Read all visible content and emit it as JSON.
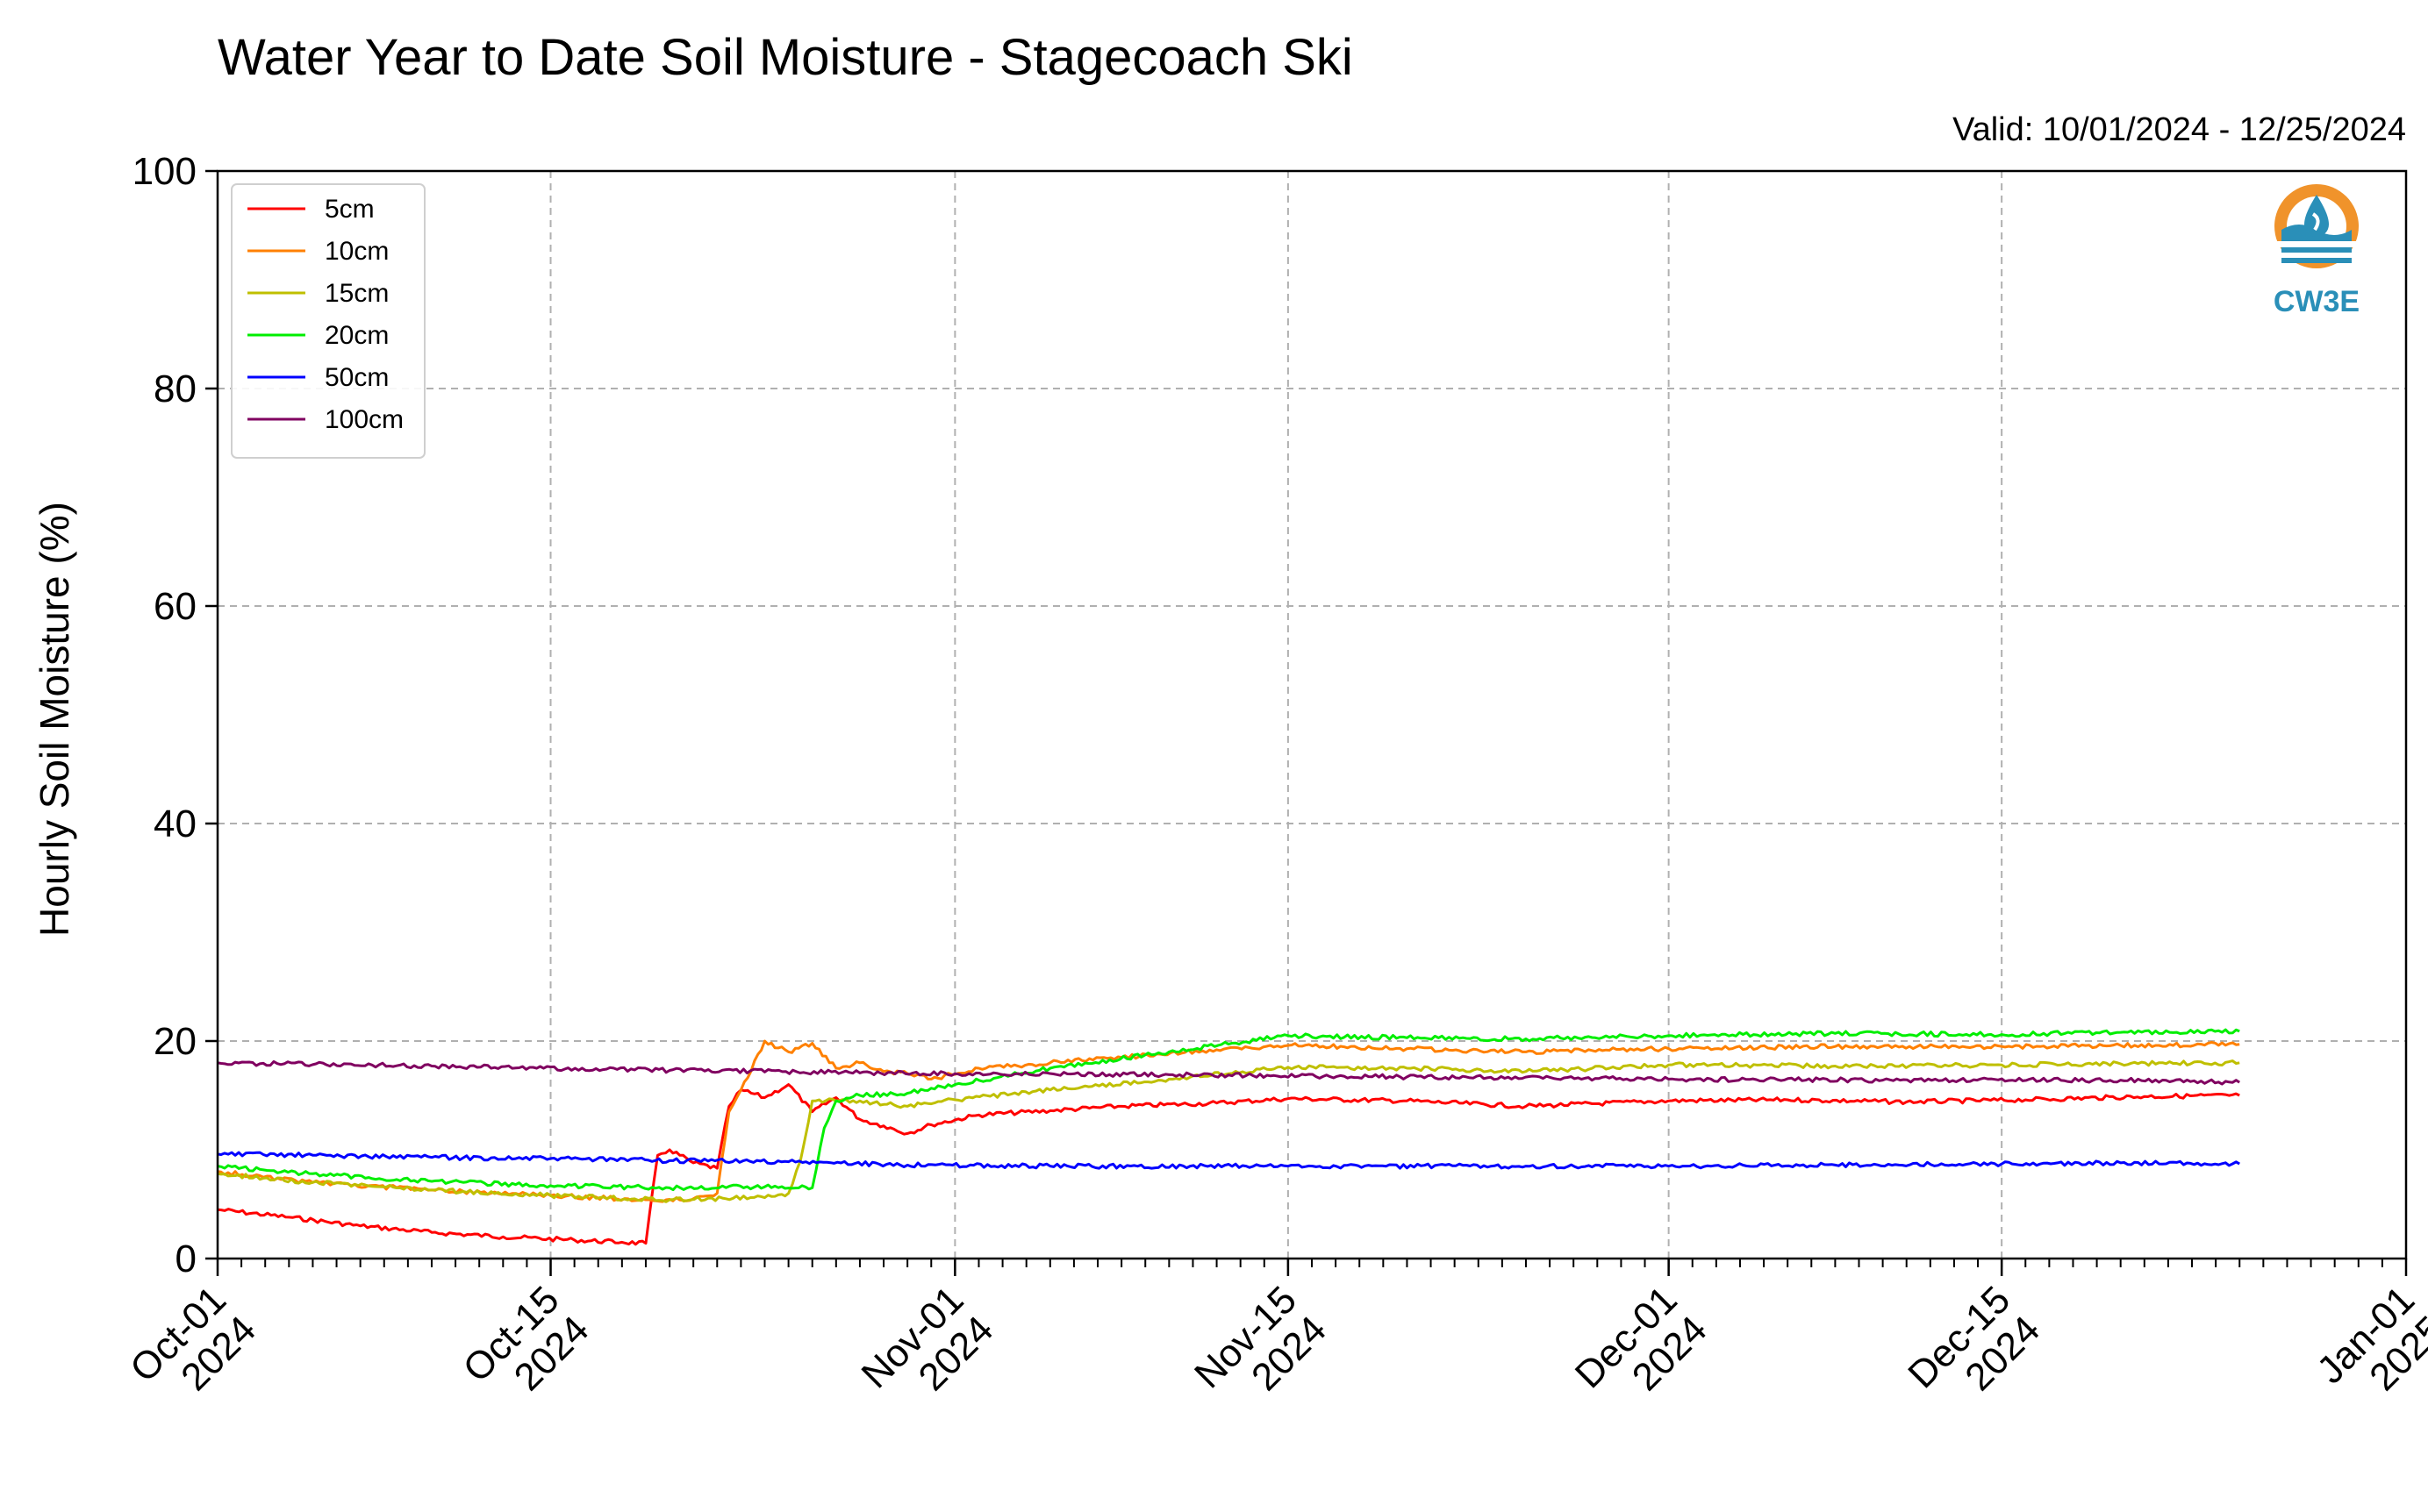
{
  "chart_data": {
    "type": "line",
    "title": "Water Year to Date Soil Moisture - Stagecoach Ski",
    "subtitle": "Valid: 10/01/2024 - 12/25/2024",
    "ylabel": "Hourly Soil Moisture (%)",
    "xlabel": "",
    "xlim": [
      "2024-10-01",
      "2025-01-01"
    ],
    "ylim": [
      0,
      100
    ],
    "yticks": [
      0,
      20,
      40,
      60,
      80,
      100
    ],
    "xticks": [
      {
        "date": "2024-10-01",
        "line1": "Oct-01",
        "line2": "2024"
      },
      {
        "date": "2024-10-15",
        "line1": "Oct-15",
        "line2": "2024"
      },
      {
        "date": "2024-11-01",
        "line1": "Nov-01",
        "line2": "2024"
      },
      {
        "date": "2024-11-15",
        "line1": "Nov-15",
        "line2": "2024"
      },
      {
        "date": "2024-12-01",
        "line1": "Dec-01",
        "line2": "2024"
      },
      {
        "date": "2024-12-15",
        "line1": "Dec-15",
        "line2": "2024"
      },
      {
        "date": "2025-01-01",
        "line1": "Jan-01",
        "line2": "2025"
      }
    ],
    "grid": true,
    "legend_position": "top-left",
    "logo": {
      "text": "CW3E",
      "color": "#2a8fb8",
      "accent": "#f0932b"
    },
    "series": [
      {
        "name": "5cm",
        "color": "#ff0000",
        "points": [
          [
            "2024-10-01",
            4.5
          ],
          [
            "2024-10-04",
            3.8
          ],
          [
            "2024-10-07",
            3.0
          ],
          [
            "2024-10-10",
            2.4
          ],
          [
            "2024-10-13",
            2.0
          ],
          [
            "2024-10-16",
            1.7
          ],
          [
            "2024-10-18",
            1.5
          ],
          [
            "2024-10-19",
            1.4
          ],
          [
            "2024-10-19T12",
            9.5
          ],
          [
            "2024-10-20",
            10.0
          ],
          [
            "2024-10-21",
            8.8
          ],
          [
            "2024-10-22",
            8.3
          ],
          [
            "2024-10-22T12",
            14.0
          ],
          [
            "2024-10-23",
            15.5
          ],
          [
            "2024-10-24",
            14.8
          ],
          [
            "2024-10-25",
            16.0
          ],
          [
            "2024-10-26",
            13.5
          ],
          [
            "2024-10-27",
            14.8
          ],
          [
            "2024-10-28",
            12.8
          ],
          [
            "2024-10-29",
            12.2
          ],
          [
            "2024-10-30",
            11.5
          ],
          [
            "2024-10-31",
            12.3
          ],
          [
            "2024-11-02",
            13.2
          ],
          [
            "2024-11-05",
            13.6
          ],
          [
            "2024-11-08",
            14.0
          ],
          [
            "2024-11-12",
            14.3
          ],
          [
            "2024-11-15",
            14.7
          ],
          [
            "2024-11-20",
            14.5
          ],
          [
            "2024-11-25",
            14.0
          ],
          [
            "2024-12-01",
            14.5
          ],
          [
            "2024-12-06",
            14.6
          ],
          [
            "2024-12-11",
            14.4
          ],
          [
            "2024-12-16",
            14.6
          ],
          [
            "2024-12-21",
            14.9
          ],
          [
            "2024-12-25",
            15.0
          ]
        ]
      },
      {
        "name": "10cm",
        "color": "#ff8000",
        "points": [
          [
            "2024-10-01",
            8.0
          ],
          [
            "2024-10-05",
            7.0
          ],
          [
            "2024-10-10",
            6.3
          ],
          [
            "2024-10-15",
            5.8
          ],
          [
            "2024-10-19",
            5.4
          ],
          [
            "2024-10-21",
            5.5
          ],
          [
            "2024-10-22",
            6.0
          ],
          [
            "2024-10-22T12",
            13.5
          ],
          [
            "2024-10-23",
            15.5
          ],
          [
            "2024-10-24",
            20.0
          ],
          [
            "2024-10-25",
            19.0
          ],
          [
            "2024-10-26",
            19.8
          ],
          [
            "2024-10-27",
            17.5
          ],
          [
            "2024-10-28",
            18.0
          ],
          [
            "2024-10-29",
            17.2
          ],
          [
            "2024-10-30",
            17.0
          ],
          [
            "2024-10-31",
            16.5
          ],
          [
            "2024-11-02",
            17.5
          ],
          [
            "2024-11-05",
            18.0
          ],
          [
            "2024-11-08",
            18.5
          ],
          [
            "2024-11-12",
            19.2
          ],
          [
            "2024-11-15",
            19.6
          ],
          [
            "2024-11-20",
            19.3
          ],
          [
            "2024-11-25",
            19.0
          ],
          [
            "2024-12-01",
            19.3
          ],
          [
            "2024-12-08",
            19.5
          ],
          [
            "2024-12-15",
            19.5
          ],
          [
            "2024-12-20",
            19.6
          ],
          [
            "2024-12-25",
            19.7
          ]
        ]
      },
      {
        "name": "15cm",
        "color": "#bfbf00",
        "points": [
          [
            "2024-10-01",
            7.8
          ],
          [
            "2024-10-05",
            7.0
          ],
          [
            "2024-10-10",
            6.3
          ],
          [
            "2024-10-15",
            5.8
          ],
          [
            "2024-10-20",
            5.4
          ],
          [
            "2024-10-24",
            5.6
          ],
          [
            "2024-10-25",
            6.0
          ],
          [
            "2024-10-25T12",
            9.0
          ],
          [
            "2024-10-26",
            14.5
          ],
          [
            "2024-10-28",
            14.5
          ],
          [
            "2024-10-30",
            14.0
          ],
          [
            "2024-11-01",
            14.6
          ],
          [
            "2024-11-05",
            15.5
          ],
          [
            "2024-11-10",
            16.5
          ],
          [
            "2024-11-15",
            17.6
          ],
          [
            "2024-11-20",
            17.5
          ],
          [
            "2024-11-25",
            17.2
          ],
          [
            "2024-12-01",
            17.8
          ],
          [
            "2024-12-08",
            17.7
          ],
          [
            "2024-12-15",
            17.8
          ],
          [
            "2024-12-20",
            17.9
          ],
          [
            "2024-12-25",
            18.0
          ]
        ]
      },
      {
        "name": "20cm",
        "color": "#00ee00",
        "points": [
          [
            "2024-10-01",
            8.5
          ],
          [
            "2024-10-05",
            7.8
          ],
          [
            "2024-10-10",
            7.1
          ],
          [
            "2024-10-15",
            6.7
          ],
          [
            "2024-10-20",
            6.5
          ],
          [
            "2024-10-24",
            6.6
          ],
          [
            "2024-10-26",
            6.5
          ],
          [
            "2024-10-26T12",
            12.0
          ],
          [
            "2024-10-27",
            14.5
          ],
          [
            "2024-10-28",
            15.0
          ],
          [
            "2024-10-30",
            15.2
          ],
          [
            "2024-11-01",
            16.0
          ],
          [
            "2024-11-05",
            17.5
          ],
          [
            "2024-11-10",
            19.0
          ],
          [
            "2024-11-15",
            20.5
          ],
          [
            "2024-11-20",
            20.3
          ],
          [
            "2024-11-25",
            20.2
          ],
          [
            "2024-12-01",
            20.5
          ],
          [
            "2024-12-08",
            20.7
          ],
          [
            "2024-12-15",
            20.6
          ],
          [
            "2024-12-20",
            20.8
          ],
          [
            "2024-12-25",
            20.9
          ]
        ]
      },
      {
        "name": "50cm",
        "color": "#0000ff",
        "points": [
          [
            "2024-10-01",
            9.6
          ],
          [
            "2024-10-05",
            9.5
          ],
          [
            "2024-10-10",
            9.3
          ],
          [
            "2024-10-15",
            9.2
          ],
          [
            "2024-10-20",
            9.0
          ],
          [
            "2024-10-25",
            8.9
          ],
          [
            "2024-10-30",
            8.6
          ],
          [
            "2024-11-05",
            8.5
          ],
          [
            "2024-11-15",
            8.5
          ],
          [
            "2024-11-25",
            8.5
          ],
          [
            "2024-12-01",
            8.5
          ],
          [
            "2024-12-08",
            8.6
          ],
          [
            "2024-12-15",
            8.7
          ],
          [
            "2024-12-20",
            8.8
          ],
          [
            "2024-12-25",
            8.7
          ]
        ]
      },
      {
        "name": "100cm",
        "color": "#800060",
        "points": [
          [
            "2024-10-01",
            18.0
          ],
          [
            "2024-10-10",
            17.7
          ],
          [
            "2024-10-20",
            17.3
          ],
          [
            "2024-11-01",
            17.0
          ],
          [
            "2024-11-10",
            16.9
          ],
          [
            "2024-11-20",
            16.7
          ],
          [
            "2024-12-01",
            16.5
          ],
          [
            "2024-12-10",
            16.4
          ],
          [
            "2024-12-20",
            16.4
          ],
          [
            "2024-12-25",
            16.2
          ]
        ]
      }
    ]
  }
}
